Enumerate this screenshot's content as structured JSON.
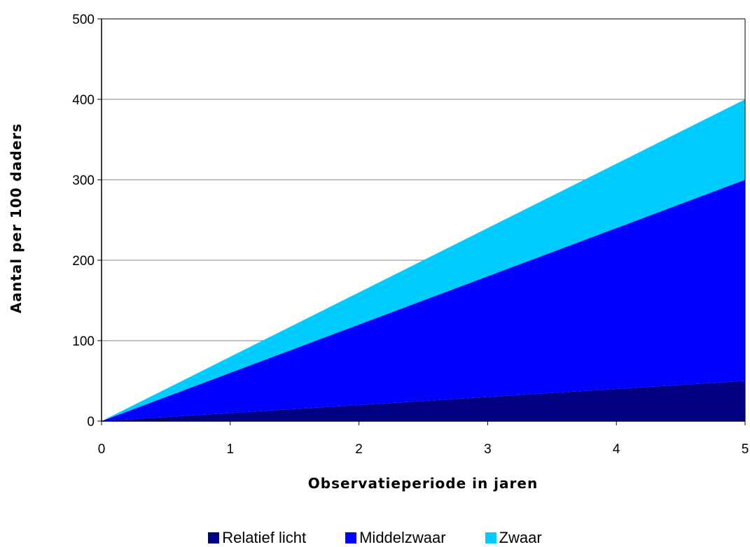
{
  "chart_data": {
    "type": "area",
    "stacked": true,
    "x": [
      0,
      1,
      2,
      3,
      4,
      5
    ],
    "series": [
      {
        "name": "Relatief licht",
        "color": "#000080",
        "values": [
          0,
          10,
          20,
          30,
          40,
          50
        ]
      },
      {
        "name": "Middelzwaar",
        "color": "#0000FF",
        "values": [
          0,
          50,
          100,
          150,
          200,
          250
        ]
      },
      {
        "name": "Zwaar",
        "color": "#00CCFF",
        "values": [
          0,
          20,
          40,
          60,
          80,
          100
        ]
      }
    ],
    "xlabel": "Observatieperiode in jaren",
    "ylabel": "Aantal per 100 daders",
    "xlim": [
      0,
      5
    ],
    "ylim": [
      0,
      500
    ],
    "xticks": [
      "0",
      "1",
      "2",
      "3",
      "4",
      "5"
    ],
    "yticks": [
      "0",
      "100",
      "200",
      "300",
      "400",
      "500"
    ],
    "grid": "horizontal",
    "legend": "bottom"
  }
}
